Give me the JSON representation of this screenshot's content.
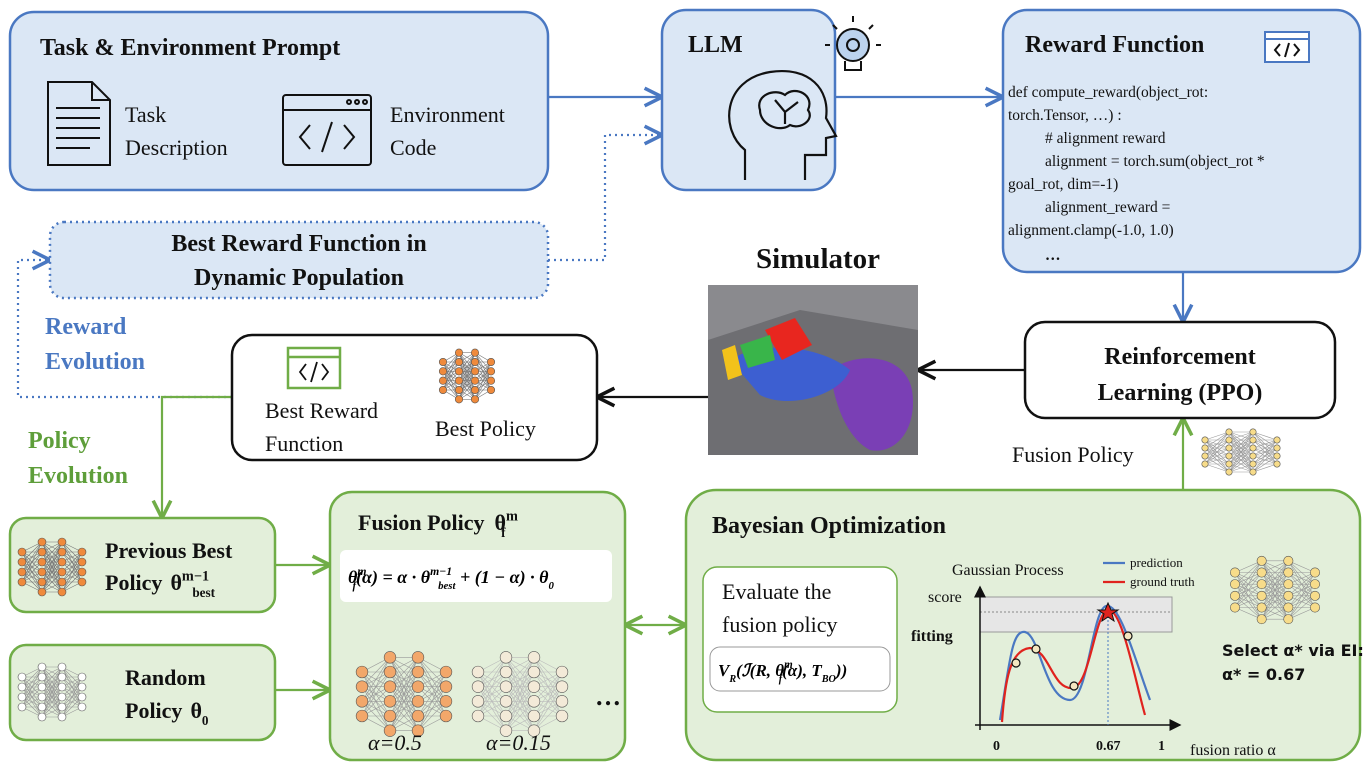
{
  "task_prompt": {
    "title": "Task & Environment Prompt",
    "task": [
      "Task",
      "Description"
    ],
    "environment": [
      "Environment",
      "Code"
    ]
  },
  "llm": {
    "title": "LLM"
  },
  "reward_function": {
    "title": "Reward Function",
    "code": [
      "def compute_reward(object_rot:",
      "torch.Tensor, …) :",
      "# alignment reward",
      "alignment = torch.sum(object_rot *",
      "goal_rot, dim=-1)",
      "alignment_reward =",
      "alignment.clamp(-1.0, 1.0)",
      "…"
    ]
  },
  "best_in_population": [
    "Best Reward Function in",
    "Dynamic Population"
  ],
  "reward_evolution": [
    "Reward",
    "Evolution"
  ],
  "simulator": {
    "title": "Simulator"
  },
  "reinforcement_learning": [
    "Reinforcement",
    "Learning (PPO)"
  ],
  "best": {
    "reward_function": [
      "Best Reward",
      "Function"
    ],
    "policy": "Best Policy"
  },
  "policy_evolution": [
    "Policy",
    "Evolution"
  ],
  "fusion_policy_label": "Fusion Policy",
  "previous_best": {
    "lines": [
      "Previous Best",
      "Policy"
    ],
    "symbol": [
      {
        "text": "θ",
        "sup": "m−1",
        "sub": "best"
      }
    ]
  },
  "random": {
    "lines": [
      "Random",
      "Policy"
    ],
    "symbol": [
      {
        "text": "θ",
        "sub": "0"
      }
    ]
  },
  "fusion": {
    "title": "Fusion Policy",
    "symbol": [
      {
        "text": "θ",
        "sup": "m",
        "sub": "f"
      }
    ],
    "formula": [
      {
        "text": "θ",
        "sup": "m",
        "sub": "f"
      },
      {
        "text": "(α) = α · θ",
        "sup": "m−1",
        "sub": "best"
      },
      {
        "text": " + (1 − α) · θ",
        "sub": "0"
      }
    ],
    "samples": [
      "α=0.5",
      "α=0.15"
    ],
    "more": "…"
  },
  "bayesian_optimization": {
    "title": "Bayesian Optimization",
    "evaluate": [
      "Evaluate the",
      "fusion policy"
    ],
    "objective": [
      {
        "text": "V",
        "sub": "R"
      },
      {
        "text": "(ℐ(R, θ",
        "sup": "m",
        "sub": "f"
      },
      {
        "text": "(α), T",
        "sub": "BO"
      },
      {
        "text": "))"
      }
    ],
    "fitting": "fitting",
    "plot": {
      "title": "Gaussian Process",
      "y_label": "score",
      "x_label": "fusion ratio α",
      "x_ticks": [
        "0",
        "0.67",
        "1"
      ],
      "legend": [
        "prediction",
        "ground truth"
      ]
    },
    "selection": [
      "Select α* via EI:",
      "α* = 0.67"
    ]
  }
}
